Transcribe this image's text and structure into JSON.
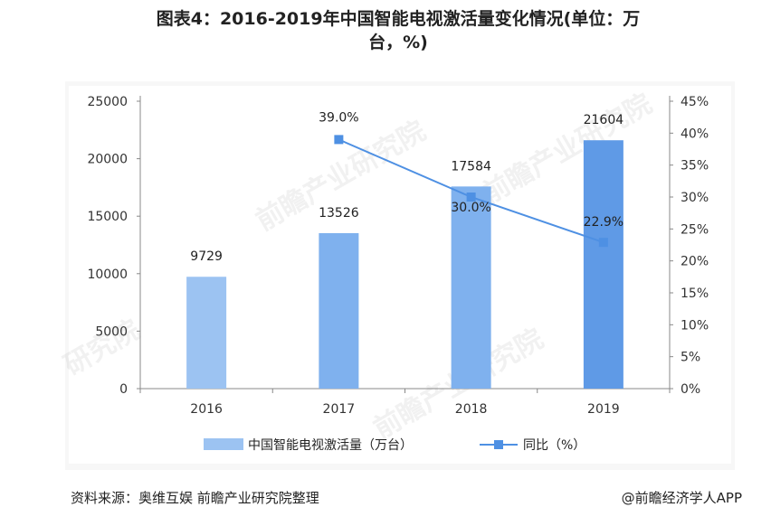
{
  "header": {
    "title_line1": "图表4：2016-2019年中国智能电视激活量变化情况(单位：万",
    "title_line2": "台，%)"
  },
  "chart_data": {
    "type": "bar",
    "categories": [
      "2016",
      "2017",
      "2018",
      "2019"
    ],
    "series": [
      {
        "name": "中国智能电视激活量（万台）",
        "kind": "bar",
        "axis": "left",
        "values": [
          9729,
          13526,
          17584,
          21604
        ],
        "labels": [
          "9729",
          "13526",
          "17584",
          "21604"
        ]
      },
      {
        "name": "同比（%）",
        "kind": "line",
        "axis": "right",
        "values": [
          null,
          39.0,
          30.0,
          22.9
        ],
        "labels": [
          "",
          "39.0%",
          "30.0%",
          "22.9%"
        ]
      }
    ],
    "left_axis": {
      "ylim": [
        0,
        25000
      ],
      "ticks": [
        "0",
        "5000",
        "10000",
        "15000",
        "20000",
        "25000"
      ]
    },
    "right_axis": {
      "ylim": [
        0,
        45
      ],
      "ticks": [
        "0%",
        "5%",
        "10%",
        "15%",
        "20%",
        "25%",
        "30%",
        "35%",
        "40%",
        "45%"
      ]
    },
    "legend_position": "bottom",
    "grid": false,
    "colors": {
      "bar_light": "#9cc3f2",
      "bar_mid": "#7fb1ee",
      "bar_dark": "#5f9ae6",
      "line": "#4e90e3",
      "axis": "#888888"
    }
  },
  "footer": {
    "source": "资料来源：奥维互娱 前瞻产业研究院整理",
    "brand": "@前瞻经济学人APP"
  },
  "watermarks": [
    "前瞻产业研究院",
    "前瞻产业研究院",
    "研究院",
    "前瞻产业研究院"
  ]
}
